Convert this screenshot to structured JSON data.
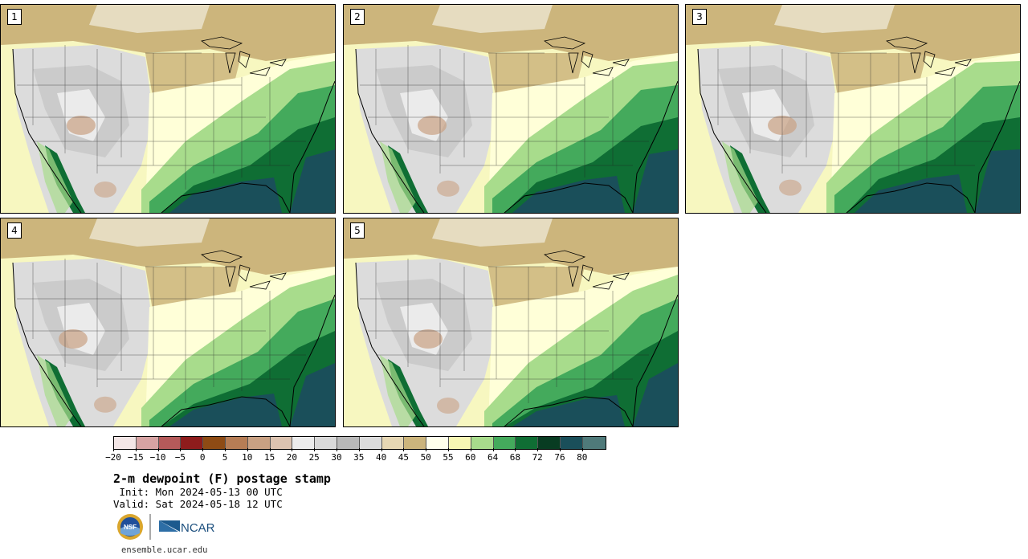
{
  "panels": [
    {
      "label": "1"
    },
    {
      "label": "2"
    },
    {
      "label": "3"
    },
    {
      "label": "4"
    },
    {
      "label": "5"
    }
  ],
  "colorbar": {
    "colors": [
      "#f3e6e6",
      "#d7a3a3",
      "#b55a5a",
      "#8e1c1c",
      "#8e4b14",
      "#b67d55",
      "#c9a183",
      "#dcc3b0",
      "#ececec",
      "#d9d9d9",
      "#b9b9b9",
      "#dcdcdc",
      "#e6d7b4",
      "#ccb57c",
      "#ffffec",
      "#f7f7b4",
      "#a8dc8c",
      "#44aa5c",
      "#0f6e34",
      "#083c22",
      "#1a4f5a",
      "#4f7a7a"
    ],
    "tick_labels": [
      "−20",
      "−15",
      "−10",
      "−5",
      "0",
      "5",
      "10",
      "15",
      "20",
      "25",
      "30",
      "35",
      "40",
      "45",
      "50",
      "55",
      "60",
      "64",
      "68",
      "72",
      "76",
      "80"
    ]
  },
  "title": "2-m dewpoint (F) postage stamp",
  "init_text": " Init: Mon 2024-05-13 00 UTC",
  "valid_text": "Valid: Sat 2024-05-18 12 UTC",
  "logos": {
    "nsf": "NSF",
    "ncar": "NCAR"
  },
  "url": "ensemble.ucar.edu"
}
